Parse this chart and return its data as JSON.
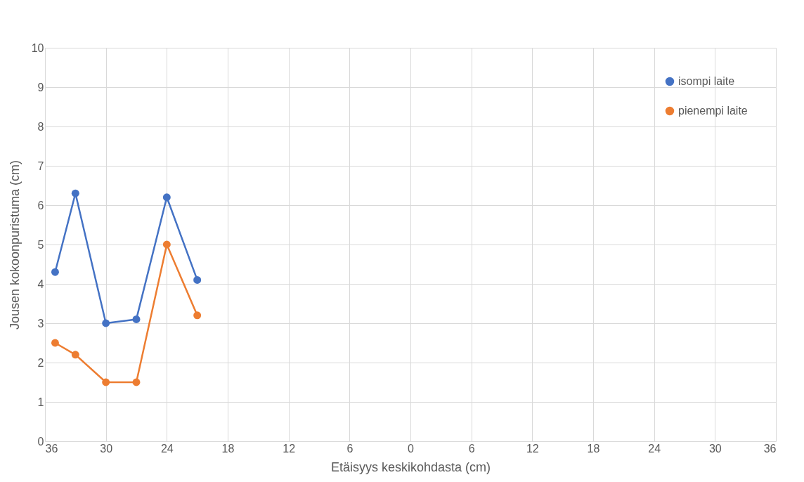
{
  "chart_data": {
    "type": "line",
    "xlabel": "Etäisyys keskikohdasta (cm)",
    "ylabel": "Jousen kokoonpuristuma (cm)",
    "x": [
      -35,
      -33,
      -30,
      -27,
      -24,
      -21
    ],
    "series": [
      {
        "name": "isompi laite",
        "color": "#4472c4",
        "values": [
          4.3,
          6.3,
          3.0,
          3.1,
          6.2,
          4.1
        ]
      },
      {
        "name": "pienempi laite",
        "color": "#ed7d31",
        "values": [
          2.5,
          2.2,
          1.5,
          1.5,
          5.0,
          3.2
        ]
      }
    ],
    "xlim": [
      -36,
      36
    ],
    "xticks": [
      {
        "value": -36,
        "label": "36"
      },
      {
        "value": -30,
        "label": "30"
      },
      {
        "value": -24,
        "label": "24"
      },
      {
        "value": -18,
        "label": "18"
      },
      {
        "value": -12,
        "label": "12"
      },
      {
        "value": -6,
        "label": "6"
      },
      0,
      6,
      12,
      18,
      24,
      30,
      36
    ],
    "ylim": [
      0,
      10
    ],
    "yticks": [
      0,
      1,
      2,
      3,
      4,
      5,
      6,
      7,
      8,
      9,
      10
    ],
    "grid": true,
    "legend": "top right",
    "marker": "circle",
    "line_style": "solid"
  }
}
